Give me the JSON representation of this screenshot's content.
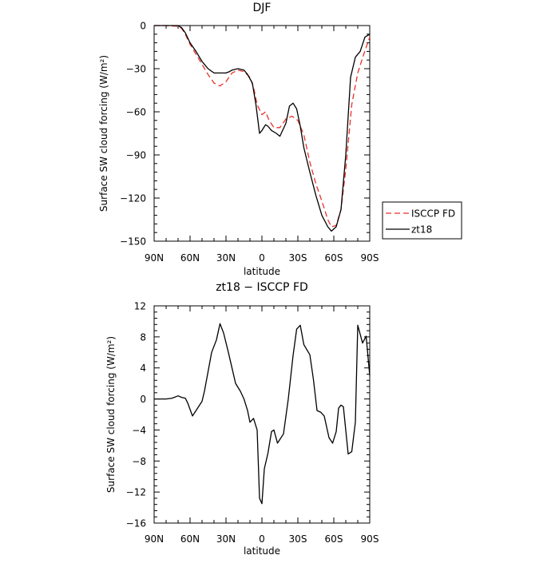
{
  "chart_data": [
    {
      "type": "line",
      "title": "DJF",
      "xlabel": "latitude",
      "ylabel": "Surface SW cloud forcing (W/m²)",
      "x_ticks": [
        {
          "value": 90,
          "label": "90N"
        },
        {
          "value": 60,
          "label": "60N"
        },
        {
          "value": 30,
          "label": "30N"
        },
        {
          "value": 0,
          "label": "0"
        },
        {
          "value": -30,
          "label": "30S"
        },
        {
          "value": -60,
          "label": "60S"
        },
        {
          "value": -90,
          "label": "90S"
        }
      ],
      "xlim": [
        90,
        -90
      ],
      "ylim": [
        -150,
        0
      ],
      "y_ticks": [
        0,
        -30,
        -60,
        -90,
        -120,
        -150
      ],
      "legend_position": "outside-right",
      "series": [
        {
          "name": "ISCCP FD",
          "color": "#e8312a",
          "dash": "dashed",
          "x": [
            90,
            80,
            70,
            67,
            64,
            60,
            55,
            50,
            45,
            40,
            35,
            30,
            25,
            20,
            15,
            10,
            7,
            4,
            0,
            -3,
            -6,
            -10,
            -15,
            -20,
            -25,
            -30,
            -35,
            -40,
            -45,
            -50,
            -55,
            -58,
            -62,
            -66,
            -70,
            -75,
            -80,
            -85,
            -90
          ],
          "y": [
            0,
            0,
            -0.5,
            -2,
            -6,
            -13,
            -20,
            -27,
            -34,
            -40,
            -42,
            -39,
            -33,
            -31,
            -32,
            -36,
            -43,
            -55,
            -62,
            -60,
            -66,
            -71,
            -71,
            -65,
            -63,
            -66,
            -76,
            -95,
            -110,
            -122,
            -135,
            -140,
            -139,
            -128,
            -100,
            -55,
            -33,
            -20,
            -8
          ]
        },
        {
          "name": "zt18",
          "color": "#000000",
          "dash": "solid",
          "x": [
            90,
            80,
            70,
            67,
            64,
            60,
            55,
            50,
            45,
            40,
            35,
            30,
            27,
            25,
            20,
            15,
            12,
            8,
            5,
            2,
            0,
            -3,
            -5,
            -8,
            -12,
            -15,
            -20,
            -23,
            -26,
            -29,
            -32,
            -35,
            -40,
            -45,
            -50,
            -55,
            -58,
            -62,
            -66,
            -70,
            -74,
            -78,
            -82,
            -86,
            -90
          ],
          "y": [
            0,
            0,
            0,
            -1.5,
            -5,
            -12,
            -18,
            -25,
            -30,
            -33,
            -33,
            -33,
            -32,
            -31,
            -30,
            -31,
            -34,
            -40,
            -55,
            -75,
            -73,
            -69,
            -70,
            -73,
            -75,
            -77,
            -68,
            -56,
            -54,
            -58,
            -70,
            -85,
            -102,
            -118,
            -132,
            -140,
            -143,
            -140,
            -128,
            -90,
            -36,
            -22,
            -18,
            -8,
            -6
          ]
        }
      ]
    },
    {
      "type": "line",
      "title": "zt18 − ISCCP FD",
      "xlabel": "latitude",
      "ylabel": "Surface SW cloud forcing (W/m²)",
      "x_ticks": [
        {
          "value": 90,
          "label": "90N"
        },
        {
          "value": 60,
          "label": "60N"
        },
        {
          "value": 30,
          "label": "30N"
        },
        {
          "value": 0,
          "label": "0"
        },
        {
          "value": -30,
          "label": "30S"
        },
        {
          "value": -60,
          "label": "60S"
        },
        {
          "value": -90,
          "label": "90S"
        }
      ],
      "xlim": [
        90,
        -90
      ],
      "ylim": [
        -16,
        12
      ],
      "y_ticks": [
        12,
        8,
        4,
        0,
        -4,
        -8,
        -12,
        -16
      ],
      "series": [
        {
          "name": "",
          "color": "#000000",
          "dash": "solid",
          "x": [
            90,
            80,
            75,
            70,
            67,
            64,
            62,
            58,
            55,
            50,
            48,
            45,
            42,
            38,
            35,
            32,
            28,
            25,
            22,
            18,
            15,
            12,
            10,
            7,
            4,
            2,
            0,
            -2,
            -5,
            -8,
            -10,
            -13,
            -18,
            -22,
            -26,
            -29,
            -32,
            -35,
            -40,
            -43,
            -46,
            -49,
            -52,
            -56,
            -59,
            -62,
            -64,
            -66,
            -68,
            -72,
            -75,
            -78,
            -80,
            -84,
            -87,
            -90
          ],
          "y": [
            0,
            0,
            0.1,
            0.4,
            0.2,
            0.1,
            -0.5,
            -2.2,
            -1.5,
            -0.3,
            1,
            3.5,
            6,
            7.6,
            9.7,
            8.5,
            6,
            4,
            2,
            1,
            0,
            -1.5,
            -3,
            -2.5,
            -4,
            -12.8,
            -13.5,
            -9,
            -7,
            -4.2,
            -4,
            -5.7,
            -4.5,
            0,
            5.6,
            9,
            9.5,
            7,
            5.7,
            2.5,
            -1.5,
            -1.7,
            -2.2,
            -5,
            -5.7,
            -4.2,
            -1.2,
            -0.8,
            -1,
            -7.1,
            -6.8,
            -3,
            9.5,
            7.2,
            8.1,
            3
          ]
        }
      ]
    }
  ]
}
